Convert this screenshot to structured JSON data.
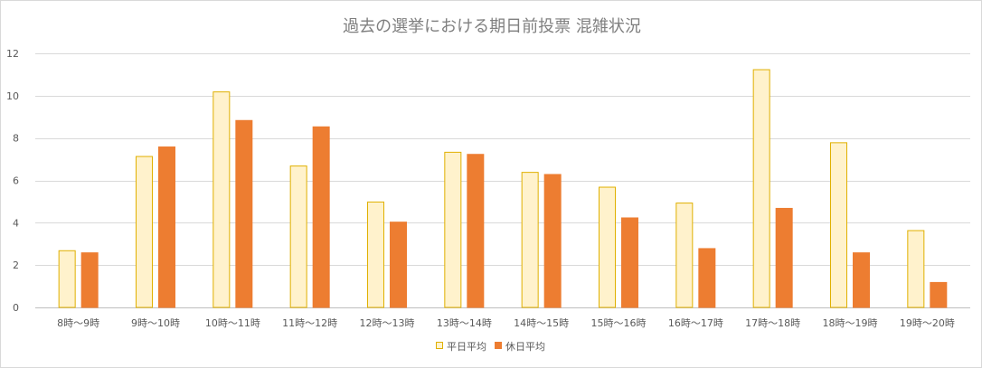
{
  "chart_data": {
    "type": "bar",
    "title": "過去の選挙における期日前投票 混雑状況",
    "categories": [
      "8時～9時",
      "9時～10時",
      "10時～11時",
      "11時～12時",
      "12時～13時",
      "13時～14時",
      "14時～15時",
      "15時～16時",
      "16時～17時",
      "17時～18時",
      "18時～19時",
      "19時～20時"
    ],
    "series": [
      {
        "name": "平日平均",
        "fill": "#fff2cc",
        "stroke": "#e0b000",
        "values": [
          2.7,
          7.15,
          10.2,
          6.7,
          5.0,
          7.35,
          6.4,
          5.7,
          4.95,
          11.25,
          7.8,
          3.65
        ]
      },
      {
        "name": "休日平均",
        "fill": "#ed7d31",
        "stroke": "#ed7d31",
        "values": [
          2.6,
          7.6,
          8.85,
          8.55,
          4.05,
          7.25,
          6.3,
          4.25,
          2.8,
          4.7,
          2.6,
          1.2
        ]
      }
    ],
    "xlabel": "",
    "ylabel": "",
    "ylim": [
      0,
      12
    ],
    "yticks": [
      0,
      2,
      4,
      6,
      8,
      10,
      12
    ],
    "grid": true,
    "legend": "bottom-center"
  }
}
